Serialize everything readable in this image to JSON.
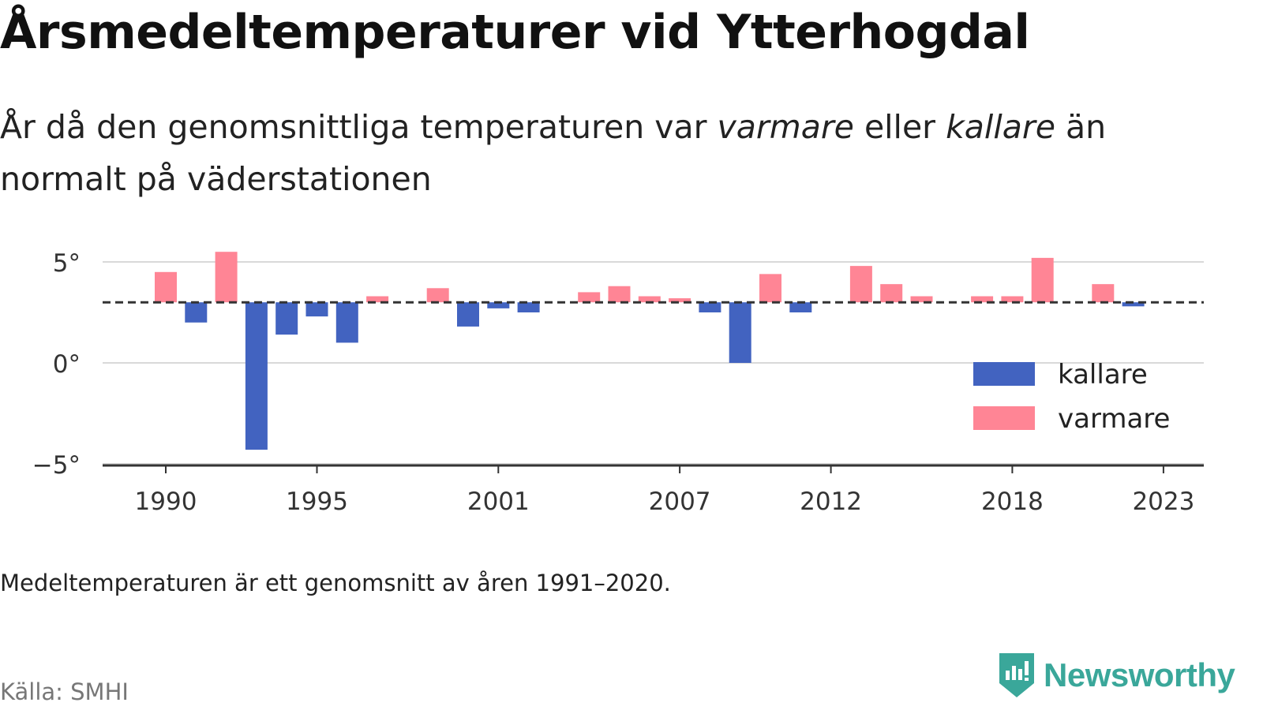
{
  "title": "Årsmedeltemperaturer vid Ytterhogdal",
  "subtitle": {
    "part1": "År då den genomsnittliga temperaturen var ",
    "warmer_word": "varmare",
    "part2": " eller ",
    "colder_word": "kallare",
    "part3": " än normalt på väderstationen"
  },
  "footnote": "Medeltemperaturen är ett genomsnitt av åren 1991–2020.",
  "source": "Källa: SMHI",
  "brand": "Newsworthy",
  "colors": {
    "colder": "#4263c0",
    "warmer": "#ff8595",
    "grid": "#d9d9d9",
    "axis": "#333333",
    "reference": "#333333",
    "brand": "#3aa79a"
  },
  "chart_data": {
    "type": "bar",
    "x": [
      1990,
      1991,
      1992,
      1993,
      1994,
      1995,
      1996,
      1997,
      1998,
      1999,
      2000,
      2001,
      2002,
      2003,
      2004,
      2005,
      2006,
      2007,
      2008,
      2009,
      2010,
      2011,
      2012,
      2013,
      2014,
      2015,
      2016,
      2017,
      2018,
      2019,
      2020,
      2021,
      2022,
      2023
    ],
    "values": [
      4.5,
      2.0,
      5.5,
      -4.3,
      1.4,
      2.3,
      1.0,
      3.3,
      null,
      3.7,
      1.8,
      2.7,
      2.5,
      null,
      3.5,
      3.8,
      3.3,
      3.2,
      2.5,
      0.0,
      4.4,
      2.5,
      null,
      4.8,
      3.9,
      3.3,
      null,
      3.3,
      3.3,
      5.2,
      null,
      3.9,
      2.8,
      null
    ],
    "baseline": 3.0,
    "ylim": [
      -5.2,
      5.8
    ],
    "yticks": [
      5,
      0,
      -5
    ],
    "ytick_labels": [
      "5°",
      "0°",
      "−5°"
    ],
    "xticks": [
      1990,
      1995,
      2001,
      2007,
      2012,
      2018,
      2023
    ],
    "xtick_labels": [
      "1990",
      "1995",
      "2001",
      "2007",
      "2012",
      "2018",
      "2023"
    ],
    "legend": [
      {
        "name": "kallare",
        "color": "#4263c0"
      },
      {
        "name": "varmare",
        "color": "#ff8595"
      }
    ],
    "legend_position": "right",
    "grid": true
  }
}
